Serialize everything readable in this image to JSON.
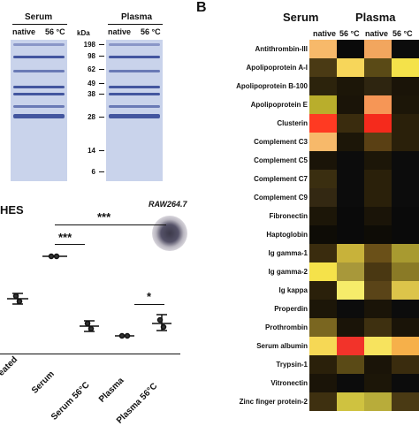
{
  "panelA": {
    "group_labels": [
      "Serum",
      "Plasma"
    ],
    "lane_labels": [
      "native",
      "56 °C",
      "native",
      "56 °C"
    ],
    "mw_unit": "kDa",
    "mw_markers": [
      "198",
      "98",
      "62",
      "49",
      "38",
      "28",
      "14",
      "6"
    ]
  },
  "panelB": {
    "letter": "B",
    "group_labels": [
      "Serum",
      "Plasma"
    ],
    "column_labels": [
      "native",
      "56 °C",
      "native",
      "56 °C"
    ],
    "proteins": [
      "Antithrombin-III",
      "Apolipoprotein A-I",
      "Apolipoprotein B-100",
      "Apolipoprotein E",
      "Clusterin",
      "Complement C3",
      "Complement C5",
      "Complement C7",
      "Complement C9",
      "Fibronectin",
      "Haptoglobin",
      "Ig gamma-1",
      "Ig gamma-2",
      "Ig kappa",
      "Properdin",
      "Prothrombin",
      "Serum albumin",
      "Trypsin-1",
      "Vitronectin",
      "Zinc finger protein-2"
    ],
    "heatmap_colors": [
      [
        "#f7b96a",
        "#0a0a0a",
        "#f2a65e",
        "#0c0c0c"
      ],
      [
        "#4a3a14",
        "#f7d65a",
        "#5a4a16",
        "#f4e24a"
      ],
      [
        "#2c230c",
        "#1c1608",
        "#2e2510",
        "#1a1408"
      ],
      [
        "#b9ae2c",
        "#1a1408",
        "#f69656",
        "#1c1608"
      ],
      [
        "#ff3a22",
        "#3a2c0e",
        "#f52a1c",
        "#2a200a"
      ],
      [
        "#f7b96a",
        "#1c1608",
        "#5a4014",
        "#2a200a"
      ],
      [
        "#1a1408",
        "#0c0c0c",
        "#1c1608",
        "#0c0c0c"
      ],
      [
        "#3a2e10",
        "#0c0c0c",
        "#2a200a",
        "#0c0c0c"
      ],
      [
        "#332812",
        "#0c0c0c",
        "#2a200a",
        "#0c0c0c"
      ],
      [
        "#1c1608",
        "#0a0a0a",
        "#1a1408",
        "#0a0a0a"
      ],
      [
        "#0e0c06",
        "#0a0a0a",
        "#0e0c06",
        "#0a0a0a"
      ],
      [
        "#3a2c0e",
        "#c8b23a",
        "#6a5018",
        "#a89a30"
      ],
      [
        "#f5e24a",
        "#a8983a",
        "#4a3812",
        "#8a7a26"
      ],
      [
        "#2a200a",
        "#f6ec6a",
        "#5a4418",
        "#dcc44a"
      ],
      [
        "#1c1608",
        "#0c0c0c",
        "#1a1408",
        "#0c0c0c"
      ],
      [
        "#7a6620",
        "#1a1408",
        "#3e3010",
        "#1a1408"
      ],
      [
        "#f6d855",
        "#f2332a",
        "#f7e35e",
        "#f6b04a"
      ],
      [
        "#2a200a",
        "#5a4a16",
        "#1a1408",
        "#3a2c0e"
      ],
      [
        "#1a1408",
        "#0c0c0c",
        "#1c1608",
        "#0c0c0c"
      ],
      [
        "#3e3010",
        "#cfc240",
        "#b8ac3a",
        "#4a3a14"
      ]
    ]
  },
  "panelC": {
    "title_fragment": "HES",
    "cell_label": "RAW264.7",
    "x_labels": [
      "eated",
      "Serum",
      "Serum 56°C",
      "Plasma",
      "Plasma 56°C"
    ],
    "significance": [
      "***",
      "***",
      "*"
    ]
  }
}
